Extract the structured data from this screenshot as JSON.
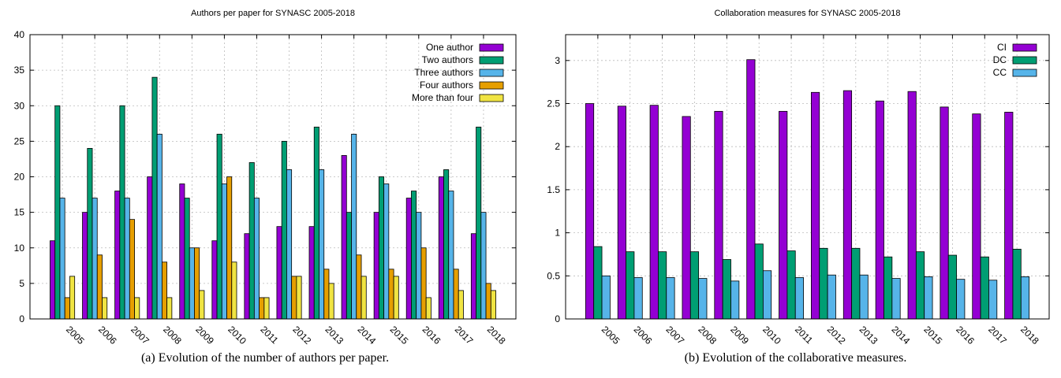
{
  "chart_data": [
    {
      "type": "bar",
      "title": "Authors per paper for SYNASC 2005-2018",
      "caption": "(a) Evolution of the number of authors per paper.",
      "xlabel": "",
      "ylabel": "",
      "categories": [
        "2005",
        "2006",
        "2007",
        "2008",
        "2009",
        "2010",
        "2011",
        "2012",
        "2013",
        "2014",
        "2015",
        "2016",
        "2017",
        "2018"
      ],
      "ylim": [
        0,
        40
      ],
      "yticks": [
        "0",
        "5",
        "10",
        "15",
        "20",
        "25",
        "30",
        "35",
        "40"
      ],
      "grid": true,
      "legend": "top-right",
      "series": [
        {
          "name": "One author",
          "color": "#9400d3",
          "values": [
            11,
            15,
            18,
            20,
            19,
            11,
            12,
            13,
            13,
            23,
            15,
            17,
            20,
            12
          ]
        },
        {
          "name": "Two authors",
          "color": "#009e73",
          "values": [
            30,
            24,
            30,
            34,
            17,
            26,
            22,
            25,
            27,
            15,
            20,
            18,
            21,
            27
          ]
        },
        {
          "name": "Three authors",
          "color": "#56b4e9",
          "values": [
            17,
            17,
            17,
            26,
            10,
            19,
            17,
            21,
            21,
            26,
            19,
            15,
            18,
            15
          ]
        },
        {
          "name": "Four authors",
          "color": "#e69f00",
          "values": [
            3,
            9,
            14,
            8,
            10,
            20,
            3,
            6,
            7,
            9,
            7,
            10,
            7,
            5
          ]
        },
        {
          "name": "More than four",
          "color": "#f0e442",
          "values": [
            6,
            3,
            3,
            3,
            4,
            8,
            3,
            6,
            5,
            6,
            6,
            3,
            4,
            4
          ]
        }
      ]
    },
    {
      "type": "bar",
      "title": "Collaboration measures for SYNASC 2005-2018",
      "caption": "(b) Evolution of the collaborative measures.",
      "xlabel": "",
      "ylabel": "",
      "categories": [
        "2005",
        "2006",
        "2007",
        "2008",
        "2009",
        "2010",
        "2011",
        "2012",
        "2013",
        "2014",
        "2015",
        "2016",
        "2017",
        "2018"
      ],
      "ylim": [
        0,
        3.3
      ],
      "yticks": [
        "0",
        "0.5",
        "1",
        "1.5",
        "2",
        "2.5",
        "3"
      ],
      "ytick_values": [
        0,
        0.5,
        1,
        1.5,
        2,
        2.5,
        3
      ],
      "grid": true,
      "legend": "top-right",
      "series": [
        {
          "name": "CI",
          "color": "#9400d3",
          "values": [
            2.5,
            2.47,
            2.48,
            2.35,
            2.41,
            3.01,
            2.41,
            2.63,
            2.65,
            2.53,
            2.64,
            2.46,
            2.38,
            2.4
          ]
        },
        {
          "name": "DC",
          "color": "#009e73",
          "values": [
            0.84,
            0.78,
            0.78,
            0.78,
            0.69,
            0.87,
            0.79,
            0.82,
            0.82,
            0.72,
            0.78,
            0.74,
            0.72,
            0.81
          ]
        },
        {
          "name": "CC",
          "color": "#56b4e9",
          "values": [
            0.5,
            0.48,
            0.48,
            0.47,
            0.44,
            0.56,
            0.48,
            0.51,
            0.51,
            0.47,
            0.49,
            0.46,
            0.45,
            0.49
          ]
        }
      ]
    }
  ]
}
